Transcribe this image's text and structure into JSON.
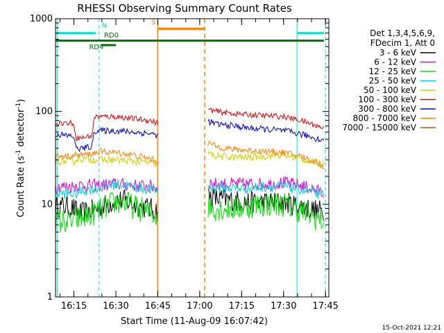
{
  "chart_data": {
    "type": "line",
    "title": "RHESSI Observing Summary Count Rates",
    "xlabel": "Start Time (11-Aug-09 16:07:42)",
    "ylabel_main": "Count Rate (s",
    "ylabel_sup1": "-1",
    "ylabel_mid": " detector",
    "ylabel_sup2": "-1",
    "ylabel_end": ")",
    "yscale": "log",
    "xlim": [
      16.14,
      17.77
    ],
    "ylim": [
      1,
      1000
    ],
    "x_ticks": [
      {
        "value": 16.25,
        "label": "16:15"
      },
      {
        "value": 16.5,
        "label": "16:30"
      },
      {
        "value": 16.75,
        "label": "16:45"
      },
      {
        "value": 17.0,
        "label": "17:00"
      },
      {
        "value": 17.25,
        "label": "17:15"
      },
      {
        "value": 17.5,
        "label": "17:30"
      },
      {
        "value": 17.75,
        "label": "17:45"
      }
    ],
    "y_ticks": [
      {
        "value": 1,
        "label": "1"
      },
      {
        "value": 10,
        "label": "10"
      },
      {
        "value": 100,
        "label": "100"
      },
      {
        "value": 1000,
        "label": "1000"
      }
    ],
    "legend_header": [
      "Det 1,3,4,5,6,9,",
      "FDecim 1, Att 0"
    ],
    "legend_position": "right",
    "series": [
      {
        "name": "3 - 6 keV",
        "color": "#000000",
        "segments": [
          {
            "x": [
              16.14,
              16.2,
              16.25,
              16.26,
              16.3,
              16.4,
              16.5,
              16.55,
              16.6,
              16.7,
              16.75
            ],
            "y": [
              9.5,
              9.5,
              9,
              8.5,
              8,
              9,
              11,
              11,
              10,
              9,
              8.5
            ]
          },
          {
            "x": [
              17.05,
              17.1,
              17.2,
              17.3,
              17.4,
              17.5,
              17.55,
              17.6,
              17.65,
              17.7,
              17.74
            ],
            "y": [
              12.5,
              11.5,
              11,
              10.5,
              10.5,
              10.5,
              10,
              9.5,
              9,
              8.5,
              8.5
            ]
          }
        ]
      },
      {
        "name": "6 - 12 keV",
        "color": "#e000e0",
        "segments": [
          {
            "x": [
              16.14,
              16.2,
              16.25,
              16.26,
              16.3,
              16.4,
              16.5,
              16.6,
              16.7,
              16.75
            ],
            "y": [
              15.5,
              15.5,
              15.5,
              16,
              16,
              16,
              16.5,
              16,
              15.5,
              15
            ]
          },
          {
            "x": [
              17.05,
              17.1,
              17.2,
              17.3,
              17.4,
              17.5,
              17.6,
              17.7,
              17.74
            ],
            "y": [
              17,
              16.5,
              16.5,
              16.5,
              16.5,
              17,
              16,
              14,
              13
            ]
          }
        ]
      },
      {
        "name": "12 - 25 keV",
        "color": "#00e000",
        "segments": [
          {
            "x": [
              16.14,
              16.2,
              16.25,
              16.26,
              16.3,
              16.4,
              16.5,
              16.55,
              16.6,
              16.7,
              16.75
            ],
            "y": [
              6.5,
              6.5,
              6.5,
              7,
              7,
              8.5,
              10.5,
              10.5,
              9.5,
              8,
              7.5
            ]
          },
          {
            "x": [
              17.05,
              17.1,
              17.2,
              17.3,
              17.4,
              17.5,
              17.6,
              17.7,
              17.74
            ],
            "y": [
              9.5,
              9,
              9,
              9.5,
              10,
              10,
              8.5,
              7,
              6.5
            ]
          }
        ]
      },
      {
        "name": "25 - 50 keV",
        "color": "#00d0e0",
        "segments": [
          {
            "x": [
              16.14,
              16.2,
              16.25,
              16.26,
              16.3,
              16.4,
              16.5,
              16.6,
              16.7,
              16.75
            ],
            "y": [
              13,
              13,
              13,
              13,
              14,
              15,
              16.5,
              15.5,
              14.5,
              14
            ]
          },
          {
            "x": [
              17.05,
              17.1,
              17.2,
              17.3,
              17.4,
              17.5,
              17.6,
              17.7,
              17.74
            ],
            "y": [
              15.5,
              15,
              15,
              15,
              15.5,
              15.5,
              14.5,
              13,
              12.5
            ]
          }
        ]
      },
      {
        "name": "50 - 100 keV",
        "color": "#d0d000",
        "segments": [
          {
            "x": [
              16.14,
              16.2,
              16.25,
              16.26,
              16.3,
              16.4,
              16.5,
              16.6,
              16.7,
              16.75
            ],
            "y": [
              29,
              29,
              29,
              30,
              31,
              30,
              30,
              29,
              28,
              27
            ]
          },
          {
            "x": [
              17.05,
              17.1,
              17.2,
              17.3,
              17.4,
              17.5,
              17.6,
              17.7,
              17.74
            ],
            "y": [
              35,
              33,
              32,
              32,
              33,
              34,
              31,
              28,
              27
            ]
          }
        ]
      },
      {
        "name": "100 - 300 keV",
        "color": "#e00000",
        "segments": [
          {
            "x": [
              16.14,
              16.2,
              16.25,
              16.26,
              16.3,
              16.36,
              16.37,
              16.4,
              16.5,
              16.6,
              16.7,
              16.75
            ],
            "y": [
              75,
              75,
              75,
              52,
              52,
              55,
              88,
              88,
              88,
              84,
              80,
              75
            ]
          },
          {
            "x": [
              17.05,
              17.1,
              17.2,
              17.3,
              17.4,
              17.5,
              17.6,
              17.7,
              17.74
            ],
            "y": [
              105,
              100,
              95,
              92,
              90,
              88,
              80,
              70,
              66
            ]
          }
        ]
      },
      {
        "name": "300 - 800 keV",
        "color": "#0000d0",
        "segments": [
          {
            "x": [
              16.14,
              16.2,
              16.25,
              16.26,
              16.3,
              16.36,
              16.37,
              16.4,
              16.5,
              16.6,
              16.7,
              16.75
            ],
            "y": [
              57,
              55,
              54,
              40,
              40,
              42,
              62,
              62,
              62,
              60,
              58,
              55
            ]
          },
          {
            "x": [
              17.05,
              17.1,
              17.2,
              17.3,
              17.4,
              17.5,
              17.6,
              17.7,
              17.74
            ],
            "y": [
              78,
              73,
              70,
              66,
              64,
              62,
              57,
              51,
              48
            ]
          }
        ]
      },
      {
        "name": "800 - 7000 keV",
        "color": "#ff8000",
        "segments": [
          {
            "x": [
              16.14,
              16.2,
              16.25,
              16.26,
              16.3,
              16.36,
              16.4,
              16.5,
              16.6,
              16.7,
              16.75
            ],
            "y": [
              33,
              33,
              33,
              34,
              34,
              35,
              37,
              36,
              34,
              31,
              29
            ]
          },
          {
            "x": [
              17.05,
              17.1,
              17.2,
              17.3,
              17.4,
              17.5,
              17.6,
              17.7,
              17.74
            ],
            "y": [
              46,
              42,
              39,
              38,
              37,
              36,
              33,
              28,
              25
            ]
          }
        ]
      },
      {
        "name": "7000 - 15000 keV",
        "color": "#a06000",
        "segments": []
      }
    ],
    "annotations": {
      "vlines_cyan_solid": [
        16.15,
        17.58
      ],
      "vlines_cyan_dashed": [
        16.4,
        17.75
      ],
      "vlines_orange_solid": [
        16.75
      ],
      "vlines_orange_dashed": [
        17.03
      ],
      "cyan_bars": [
        [
          16.14,
          16.38
        ],
        [
          17.58,
          17.74
        ]
      ],
      "cyan_bar_level": 700,
      "orange_bar": [
        16.75,
        17.03
      ],
      "orange_bar_level": 780,
      "green_bar": [
        16.14,
        17.74
      ],
      "green_bar_level": 580,
      "green_short_bar": [
        16.41,
        16.5
      ],
      "green_short_bar_level": 520
    },
    "labels": {
      "n_label": "N",
      "s_label": "S",
      "rd0_label": "RD0",
      "rd4_label": "RD4"
    }
  },
  "footer_date": "15-Oct-2021 12:21"
}
